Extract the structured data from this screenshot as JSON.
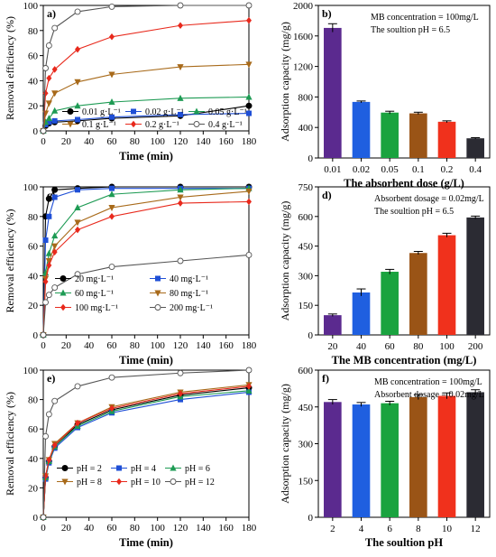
{
  "chart_data": [
    {
      "panel": "a)",
      "type": "line",
      "xlabel": "Time (min)",
      "ylabel": "Removal efficiency (%)",
      "xlim": [
        0,
        180
      ],
      "ylim": [
        0,
        100
      ],
      "xticks": [
        0,
        20,
        40,
        60,
        80,
        100,
        120,
        140,
        160,
        180
      ],
      "yticks": [
        0,
        20,
        40,
        60,
        80,
        100
      ],
      "x": [
        0,
        2,
        5,
        10,
        30,
        60,
        120,
        180
      ],
      "legend_location": "inside bottom",
      "series": [
        {
          "name": "0.01 g·L⁻¹",
          "marker": "circle-filled",
          "color": "#000000",
          "values": [
            0,
            4,
            6,
            7,
            8,
            10,
            12,
            20
          ]
        },
        {
          "name": "0.02 g·L⁻¹",
          "marker": "square",
          "color": "#1f4fd6",
          "values": [
            0,
            5,
            7,
            8,
            9,
            11,
            13,
            14
          ]
        },
        {
          "name": "0.05 g·L⁻¹",
          "marker": "triangle-up",
          "color": "#1e9b54",
          "values": [
            0,
            7,
            10,
            16,
            20,
            23,
            26,
            27
          ]
        },
        {
          "name": "0.1 g·L⁻¹",
          "marker": "triangle-down",
          "color": "#a86a1a",
          "values": [
            0,
            14,
            22,
            30,
            39,
            45,
            51,
            53
          ]
        },
        {
          "name": "0.2 g·L⁻¹",
          "marker": "diamond",
          "color": "#e8291c",
          "values": [
            0,
            30,
            42,
            49,
            65,
            75,
            84,
            88
          ]
        },
        {
          "name": "0.4 g·L⁻¹",
          "marker": "circle-open",
          "color": "#555555",
          "values": [
            0,
            50,
            68,
            82,
            95,
            99,
            100,
            100
          ]
        }
      ]
    },
    {
      "panel": "b)",
      "type": "bar",
      "xlabel": "The absorbent dose (g/L)",
      "ylabel": "Adsorption capacity (mg/g)",
      "ylim": [
        0,
        2000
      ],
      "yticks": [
        0,
        400,
        800,
        1200,
        1600,
        2000
      ],
      "categories": [
        "0.01",
        "0.02",
        "0.05",
        "0.1",
        "0.2",
        "0.4"
      ],
      "values": [
        1705,
        735,
        595,
        585,
        475,
        258
      ],
      "errors": [
        55,
        12,
        18,
        15,
        12,
        8
      ],
      "colors": [
        "#5b2a8f",
        "#1f5fe0",
        "#1aa33f",
        "#9a5416",
        "#f0311c",
        "#2b2b33"
      ],
      "annotations": [
        "MB concentration = 100mg/L",
        "The soultion pH = 6.5"
      ]
    },
    {
      "panel": "c)",
      "type": "line",
      "xlabel": "Time (min)",
      "ylabel": "Removal efficiency (%)",
      "xlim": [
        0,
        180
      ],
      "ylim": [
        0,
        100
      ],
      "xticks": [
        0,
        20,
        40,
        60,
        80,
        100,
        120,
        140,
        160,
        180
      ],
      "yticks": [
        0,
        20,
        40,
        60,
        80,
        100
      ],
      "x": [
        0,
        2,
        5,
        10,
        30,
        60,
        120,
        180
      ],
      "legend_location": "inside bottom",
      "series": [
        {
          "name": "20 mg·L⁻¹",
          "marker": "circle-filled",
          "color": "#000000",
          "values": [
            0,
            80,
            92,
            98,
            99,
            100,
            100,
            100
          ]
        },
        {
          "name": "40 mg·L⁻¹",
          "marker": "square",
          "color": "#1f4fd6",
          "values": [
            0,
            64,
            80,
            93,
            98,
            99,
            99,
            99
          ]
        },
        {
          "name": "60 mg·L⁻¹",
          "marker": "triangle-up",
          "color": "#1e9b54",
          "values": [
            0,
            42,
            55,
            67,
            86,
            95,
            98,
            99
          ]
        },
        {
          "name": "80 mg·L⁻¹",
          "marker": "triangle-down",
          "color": "#a86a1a",
          "values": [
            0,
            38,
            50,
            60,
            76,
            86,
            93,
            97
          ]
        },
        {
          "name": "100 mg·L⁻¹",
          "marker": "diamond",
          "color": "#e8291c",
          "values": [
            0,
            36,
            47,
            56,
            71,
            80,
            89,
            90
          ]
        },
        {
          "name": "200 mg·L⁻¹",
          "marker": "circle-open",
          "color": "#555555",
          "values": [
            0,
            22,
            27,
            32,
            41,
            46,
            50,
            54
          ]
        }
      ]
    },
    {
      "panel": "d)",
      "type": "bar",
      "xlabel": "The  MB  concentration (mg/L)",
      "ylabel": "Adsorption capacity (mg/g)",
      "ylim": [
        0,
        750
      ],
      "yticks": [
        0,
        150,
        300,
        450,
        600,
        750
      ],
      "categories": [
        "20",
        "40",
        "60",
        "80",
        "100",
        "200"
      ],
      "values": [
        100,
        215,
        320,
        415,
        505,
        595
      ],
      "errors": [
        6,
        18,
        12,
        8,
        10,
        7
      ],
      "colors": [
        "#5b2a8f",
        "#1f5fe0",
        "#1aa33f",
        "#9a5416",
        "#f0311c",
        "#2b2b33"
      ],
      "annotations": [
        "Absorbent dosage = 0.02mg/L",
        "The soultion pH = 6.5"
      ]
    },
    {
      "panel": "e)",
      "type": "line",
      "xlabel": "Time (min)",
      "ylabel": "Removal efficiency (%)",
      "xlim": [
        0,
        180
      ],
      "ylim": [
        0,
        100
      ],
      "xticks": [
        0,
        20,
        40,
        60,
        80,
        100,
        120,
        140,
        160,
        180
      ],
      "yticks": [
        0,
        20,
        40,
        60,
        80,
        100
      ],
      "x": [
        0,
        2,
        5,
        10,
        30,
        60,
        120,
        180
      ],
      "legend_location": "inside bottom",
      "series": [
        {
          "name": "pH = 2",
          "marker": "circle-filled",
          "color": "#000000",
          "values": [
            0,
            27,
            38,
            48,
            63,
            73,
            83,
            88
          ]
        },
        {
          "name": "pH = 4",
          "marker": "square",
          "color": "#1f4fd6",
          "values": [
            0,
            26,
            37,
            47,
            61,
            71,
            80,
            85
          ]
        },
        {
          "name": "pH = 6",
          "marker": "triangle-up",
          "color": "#1e9b54",
          "values": [
            0,
            27,
            38,
            48,
            62,
            72,
            82,
            86
          ]
        },
        {
          "name": "pH = 8",
          "marker": "triangle-down",
          "color": "#a86a1a",
          "values": [
            0,
            28,
            39,
            50,
            64,
            75,
            85,
            90
          ]
        },
        {
          "name": "pH = 10",
          "marker": "diamond",
          "color": "#e8291c",
          "values": [
            0,
            28,
            39,
            49,
            64,
            74,
            84,
            89
          ]
        },
        {
          "name": "pH = 12",
          "marker": "circle-open",
          "color": "#555555",
          "values": [
            0,
            55,
            70,
            79,
            89,
            95,
            98,
            100
          ]
        }
      ]
    },
    {
      "panel": "f)",
      "type": "bar",
      "xlabel": "The soultion pH",
      "ylabel": "Adsorption capacity (mg/g)",
      "ylim": [
        0,
        600
      ],
      "yticks": [
        0,
        150,
        300,
        450,
        600
      ],
      "categories": [
        "2",
        "4",
        "6",
        "8",
        "10",
        "12"
      ],
      "values": [
        470,
        460,
        465,
        490,
        495,
        510
      ],
      "errors": [
        10,
        8,
        8,
        10,
        12,
        10
      ],
      "colors": [
        "#5b2a8f",
        "#1f5fe0",
        "#1aa33f",
        "#9a5416",
        "#f0311c",
        "#2b2b33"
      ],
      "annotations": [
        "MB concentration = 100mg/L",
        "Absorbent dosage = 0.02mg/L"
      ]
    }
  ]
}
